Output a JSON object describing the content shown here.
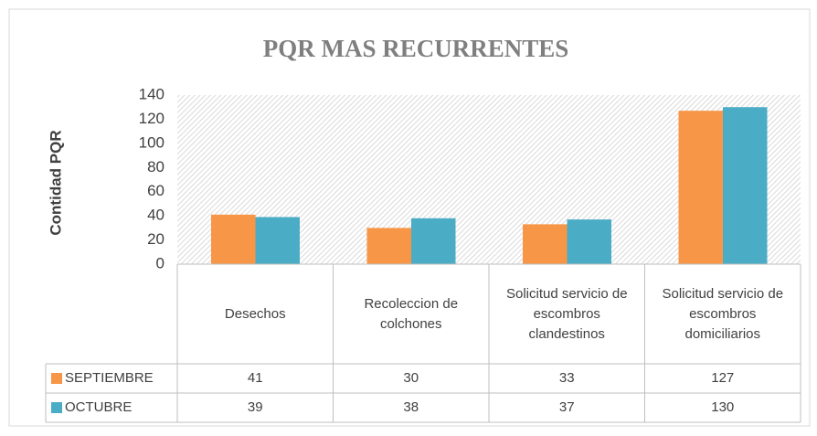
{
  "chart_data": {
    "type": "bar",
    "title": "PQR MAS RECURRENTES",
    "y_label": "Contidad PQR",
    "categories": [
      "Desechos",
      "Recoleccion de colchones",
      "Solicitud servicio de escombros clandestinos",
      "Solicitud servicio de escombros domiciliarios"
    ],
    "series": [
      {
        "name": "SEPTIEMBRE",
        "color": "#f79646",
        "values": [
          41,
          30,
          33,
          127
        ]
      },
      {
        "name": "OCTUBRE",
        "color": "#4bacc6",
        "values": [
          39,
          38,
          37,
          130
        ]
      }
    ],
    "ylim": [
      0,
      140
    ],
    "yticks": [
      0,
      20,
      40,
      60,
      80,
      100,
      120,
      140
    ],
    "grid": false,
    "data_table": true
  }
}
